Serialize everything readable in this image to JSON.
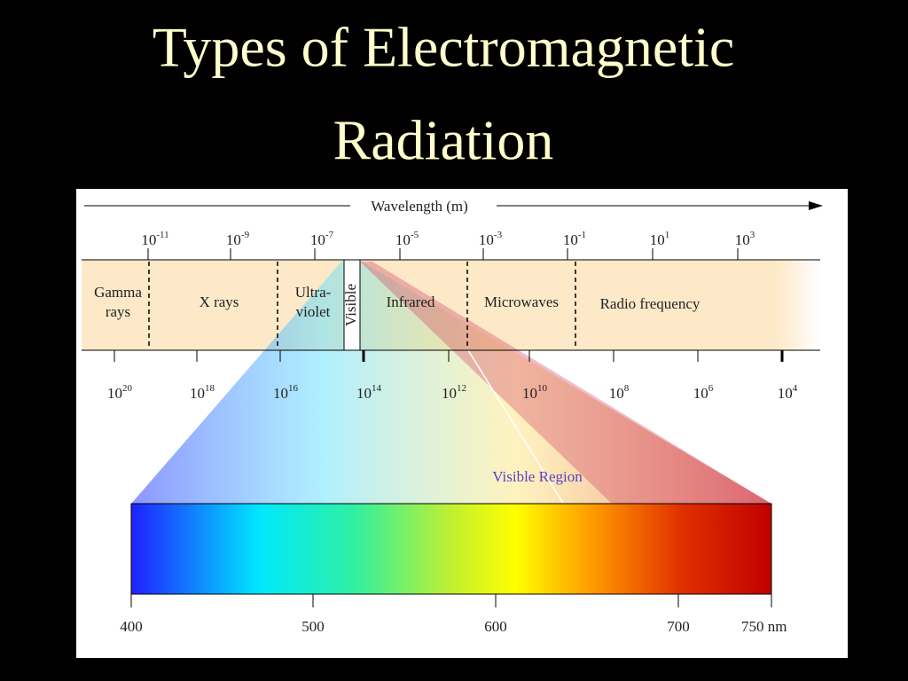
{
  "title": {
    "lines": [
      "Types of Electromagnetic",
      "Radiation"
    ]
  },
  "wavelength_axis": {
    "label": "Wavelength (m)",
    "ticks": [
      {
        "base": "10",
        "exp": "-11"
      },
      {
        "base": "10",
        "exp": "-9"
      },
      {
        "base": "10",
        "exp": "-7"
      },
      {
        "base": "10",
        "exp": "-5"
      },
      {
        "base": "10",
        "exp": "-3"
      },
      {
        "base": "10",
        "exp": "-1"
      },
      {
        "base": "10",
        "exp": "1"
      },
      {
        "base": "10",
        "exp": "3"
      }
    ]
  },
  "frequency_axis": {
    "ticks": [
      {
        "base": "10",
        "exp": "20"
      },
      {
        "base": "10",
        "exp": "18"
      },
      {
        "base": "10",
        "exp": "16"
      },
      {
        "base": "10",
        "exp": "14"
      },
      {
        "base": "10",
        "exp": "12"
      },
      {
        "base": "10",
        "exp": "10"
      },
      {
        "base": "10",
        "exp": "8"
      },
      {
        "base": "10",
        "exp": "6"
      },
      {
        "base": "10",
        "exp": "4"
      }
    ]
  },
  "regions": [
    {
      "lines": [
        "Gamma",
        "rays"
      ]
    },
    {
      "lines": [
        "X rays"
      ]
    },
    {
      "lines": [
        "Ultra-",
        "violet"
      ]
    },
    {
      "lines": [
        "Visible"
      ]
    },
    {
      "lines": [
        "Infrared"
      ]
    },
    {
      "lines": [
        "Microwaves"
      ]
    },
    {
      "lines": [
        "Radio frequency"
      ]
    }
  ],
  "visible_region": {
    "label": "Visible Region",
    "scale": [
      "400",
      "500",
      "600",
      "700",
      "750 nm"
    ]
  }
}
